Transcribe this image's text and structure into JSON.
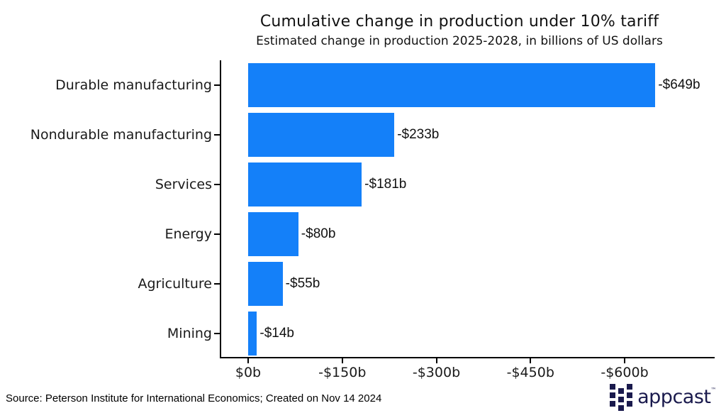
{
  "chart_data": {
    "type": "bar",
    "orientation": "horizontal",
    "title": "Cumulative change in production under 10% tariff",
    "subtitle": "Estimated change in production 2025-2028, in billions of US dollars",
    "categories": [
      "Durable manufacturing",
      "Nondurable manufacturing",
      "Services",
      "Energy",
      "Agriculture",
      "Mining"
    ],
    "values": [
      -649,
      -233,
      -181,
      -80,
      -55,
      -14
    ],
    "value_labels": [
      "-$649b",
      "-$233b",
      "-$181b",
      "-$80b",
      "-$55b",
      "-$14b"
    ],
    "x_ticks": [
      0,
      150,
      300,
      450,
      600
    ],
    "x_tick_labels": [
      "$0b",
      "-$150b",
      "-$300b",
      "-$450b",
      "-$600b"
    ],
    "xlim": [
      0,
      740
    ],
    "xlabel": "",
    "ylabel": "",
    "grid": false,
    "legend": false,
    "bar_color": "#1480f9"
  },
  "footer": {
    "source": "Source: Peterson Institute for International Economics; Created on Nov 14 2024"
  },
  "logo": {
    "text": "appcast",
    "tm": "™"
  },
  "colors": {
    "bar": "#1480f9",
    "navy": "#1a1a4d",
    "axis": "#000000",
    "text": "#1a1a1a"
  }
}
